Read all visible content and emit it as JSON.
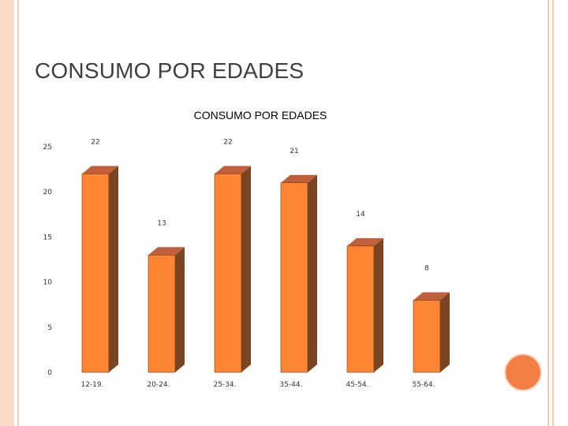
{
  "slide": {
    "title": "CONSUMO POR EDADES"
  },
  "colors": {
    "bar_front": "#fe8533",
    "bar_top": "#c0603a",
    "bar_side": "#7a4520",
    "frame": "#fbd9c8",
    "accent_circle": "#f37f44"
  },
  "chart_data": {
    "type": "bar",
    "title": "CONSUMO POR EDADES",
    "categories": [
      "12-19.",
      "20-24.",
      "25-34.",
      "35-44.",
      "45-54.",
      "55-64."
    ],
    "values": [
      22,
      13,
      22,
      21,
      14,
      8
    ],
    "data_labels": [
      "22",
      "13",
      "22",
      "21",
      "14",
      "8"
    ],
    "y_ticks": [
      "0",
      "5",
      "10",
      "15",
      "20",
      "25"
    ],
    "ylim": [
      0,
      25
    ],
    "grid": false,
    "legend": "none",
    "three_d": true
  }
}
